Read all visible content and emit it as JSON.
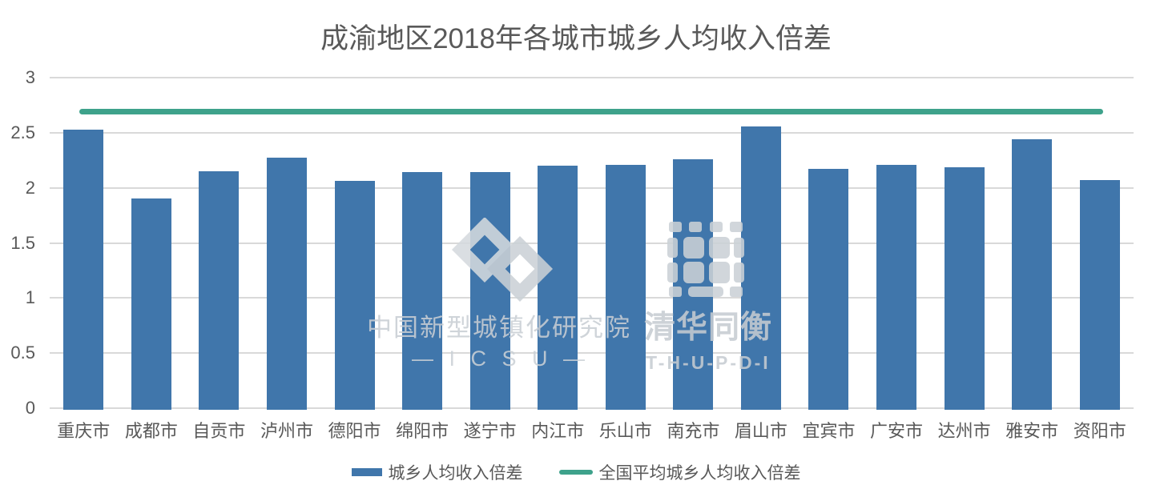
{
  "title": "成渝地区2018年各城市城乡人均收入倍差",
  "chart_data": {
    "type": "bar",
    "title": "成渝地区2018年各城市城乡人均收入倍差",
    "categories": [
      "重庆市",
      "成都市",
      "自贡市",
      "泸州市",
      "德阳市",
      "绵阳市",
      "遂宁市",
      "内江市",
      "乐山市",
      "南充市",
      "眉山市",
      "宜宾市",
      "广安市",
      "达州市",
      "雅安市",
      "资阳市"
    ],
    "series": [
      {
        "name": "城乡人均收入倍差",
        "type": "bar",
        "values": [
          2.53,
          1.9,
          2.15,
          2.27,
          2.06,
          2.14,
          2.14,
          2.2,
          2.21,
          2.26,
          2.56,
          2.17,
          2.21,
          2.19,
          2.44,
          2.07
        ]
      },
      {
        "name": "全国平均城乡人均收入倍差",
        "type": "line",
        "values": [
          2.69
        ]
      }
    ],
    "xlabel": "",
    "ylabel": "",
    "ylim": [
      0,
      3
    ],
    "yticks": [
      3,
      2.5,
      2,
      1.5,
      1,
      0.5,
      0
    ],
    "grid": true,
    "legend_position": "bottom"
  },
  "colors": {
    "bar": "#4076AB",
    "line": "#3EA28B",
    "grid": "#D9D9D9",
    "text": "#595959",
    "background": "#FFFFFF",
    "watermark": "#CBD1D6"
  },
  "legend": {
    "items": [
      {
        "label": "城乡人均收入倍差",
        "swatch": "bar"
      },
      {
        "label": "全国平均城乡人均收入倍差",
        "swatch": "line"
      }
    ]
  },
  "watermark": {
    "org1_name": "中国新型城镇化研究院",
    "org1_abbr": "— I C S U —",
    "org2_name": "清华同衡",
    "org2_abbr": "T-H-U-P-D-I"
  }
}
